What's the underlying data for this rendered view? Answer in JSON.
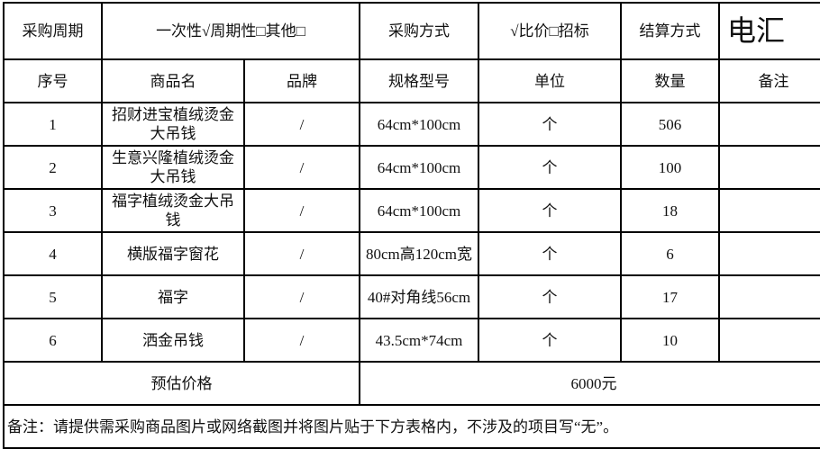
{
  "header": {
    "cycle_label": "采购周期",
    "cycle_value": "一次性√周期性□其他□",
    "method_label": "采购方式",
    "method_value": "√比价□招标",
    "settle_label": "结算方式",
    "settle_value": "电汇"
  },
  "columns": [
    "序号",
    "商品名",
    "品牌",
    "规格型号",
    "单位",
    "数量",
    "备注"
  ],
  "rows": [
    {
      "no": "1",
      "name": "招财进宝植绒烫金大吊钱",
      "brand": "/",
      "spec": "64cm*100cm",
      "unit": "个",
      "qty": "506",
      "remark": ""
    },
    {
      "no": "2",
      "name": "生意兴隆植绒烫金大吊钱",
      "brand": "/",
      "spec": "64cm*100cm",
      "unit": "个",
      "qty": "100",
      "remark": ""
    },
    {
      "no": "3",
      "name": "福字植绒烫金大吊钱",
      "brand": "/",
      "spec": "64cm*100cm",
      "unit": "个",
      "qty": "18",
      "remark": ""
    },
    {
      "no": "4",
      "name": "横版福字窗花",
      "brand": "/",
      "spec": "80cm高120cm宽",
      "unit": "个",
      "qty": "6",
      "remark": ""
    },
    {
      "no": "5",
      "name": "福字",
      "brand": "/",
      "spec": "40#对角线56cm",
      "unit": "个",
      "qty": "17",
      "remark": ""
    },
    {
      "no": "6",
      "name": "洒金吊钱",
      "brand": "/",
      "spec": "43.5cm*74cm",
      "unit": "个",
      "qty": "10",
      "remark": ""
    }
  ],
  "estimate": {
    "label": "预估价格",
    "value": "6000元"
  },
  "note": "备注：请提供需采购商品图片或网络截图并将图片贴于下方表格内，不涉及的项目写“无”。"
}
